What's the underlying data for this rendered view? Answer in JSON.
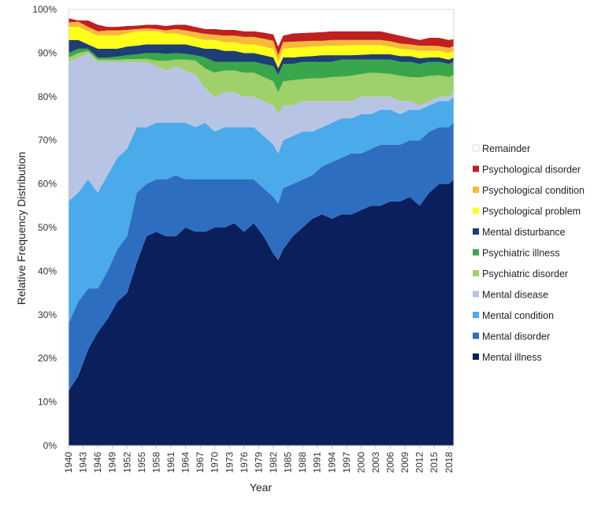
{
  "chart_data": {
    "type": "area",
    "stacked": true,
    "xlabel": "Year",
    "ylabel": "Relative Frequency Distribution",
    "ylim": [
      0,
      100
    ],
    "y_ticks": [
      "0%",
      "10%",
      "20%",
      "30%",
      "40%",
      "50%",
      "60%",
      "70%",
      "80%",
      "90%",
      "100%"
    ],
    "x_tick_labels": [
      "1940",
      "1943",
      "1946",
      "1949",
      "1952",
      "1955",
      "1958",
      "1961",
      "1964",
      "1967",
      "1970",
      "1973",
      "1976",
      "1979",
      "1982",
      "1985",
      "1988",
      "1991",
      "1994",
      "1997",
      "2000",
      "2003",
      "2006",
      "2009",
      "2012",
      "2015",
      "2018"
    ],
    "grid": false,
    "legend_position": "right",
    "legend_order": [
      "Remainder",
      "Psychological disorder",
      "Psychological condition",
      "Psychological problem",
      "Mental disturbance",
      "Psychiatric illness",
      "Psychiatric disorder",
      "Mental disease",
      "Mental condition",
      "Mental disorder",
      "Mental illness"
    ],
    "series_colors": {
      "Mental illness": "#0b1f5c",
      "Mental disorder": "#2e6ec1",
      "Mental condition": "#4aaaea",
      "Mental disease": "#b8c4e3",
      "Psychiatric disorder": "#9fd06a",
      "Psychiatric illness": "#3aa64c",
      "Mental disturbance": "#1d3f73",
      "Psychological problem": "#ffff1a",
      "Psychological condition": "#f6b93a",
      "Psychological disorder": "#c0201f",
      "Remainder": "#ffffff"
    },
    "x": [
      1940,
      1942,
      1944,
      1946,
      1948,
      1950,
      1952,
      1954,
      1956,
      1958,
      1960,
      1962,
      1964,
      1966,
      1968,
      1970,
      1972,
      1974,
      1976,
      1978,
      1980,
      1982,
      1983,
      1984,
      1986,
      1988,
      1990,
      1992,
      1994,
      1996,
      1998,
      2000,
      2002,
      2004,
      2006,
      2008,
      2010,
      2012,
      2014,
      2016,
      2018,
      2019
    ],
    "cumulative_tops": [
      {
        "name": "Mental illness",
        "values": [
          12.5,
          16,
          22,
          26,
          29,
          33,
          35,
          42,
          48,
          49,
          48,
          48,
          50,
          49,
          49,
          50,
          50,
          51,
          49,
          51,
          48,
          44,
          42.5,
          45,
          48,
          50,
          52,
          53,
          52,
          53,
          53,
          54,
          55,
          55,
          56,
          56,
          57,
          55,
          58,
          60,
          60,
          61
        ]
      },
      {
        "name": "Mental disorder",
        "values": [
          28,
          33,
          36,
          36,
          40,
          45,
          48,
          58,
          60,
          61,
          61,
          62,
          61,
          61,
          61,
          61,
          61,
          61,
          61,
          61,
          59,
          57,
          55.5,
          59,
          60,
          61,
          62,
          64,
          65,
          66,
          67,
          67,
          68,
          69,
          69,
          69,
          70,
          70,
          72,
          73,
          73,
          74
        ]
      },
      {
        "name": "Mental condition",
        "values": [
          56,
          58,
          61,
          58,
          62,
          66,
          68,
          73,
          73,
          74,
          74,
          74,
          74,
          73,
          74,
          72,
          73,
          73,
          73,
          73,
          71,
          69,
          67,
          70,
          71,
          72,
          72,
          73,
          74,
          75,
          75,
          76,
          76,
          77,
          77,
          76,
          77,
          77,
          78,
          79,
          79,
          80
        ]
      },
      {
        "name": "Mental disease",
        "values": [
          88,
          89,
          90,
          88,
          88,
          88,
          88,
          88,
          88,
          87,
          86,
          87,
          86,
          85,
          82,
          80,
          81,
          81,
          80,
          80,
          79,
          78,
          76,
          78,
          78,
          79,
          79,
          79,
          79,
          79,
          79,
          80,
          80,
          80,
          80,
          79,
          79,
          78,
          79,
          80,
          80,
          81
        ]
      },
      {
        "name": "Psychiatric disorder",
        "values": [
          89,
          90,
          90.5,
          88.5,
          88.5,
          88.5,
          88.6,
          88.6,
          88.7,
          88.3,
          88.2,
          88.5,
          88.5,
          88.3,
          86.5,
          85.5,
          86,
          86,
          85.5,
          85.5,
          84.5,
          83.5,
          81,
          83.5,
          83.8,
          84,
          84.2,
          84.2,
          84.5,
          84.6,
          84.8,
          85.2,
          85.5,
          85.4,
          85.2,
          84.8,
          84.5,
          84.4,
          84.8,
          84.9,
          84.5,
          85
        ]
      },
      {
        "name": "Psychiatric illness",
        "values": [
          90,
          91,
          91,
          89,
          89,
          89.2,
          89.5,
          89.7,
          90,
          90,
          89.8,
          90,
          89.8,
          89.5,
          89,
          88,
          88,
          88,
          88,
          88,
          87.5,
          87,
          85,
          87.5,
          87.5,
          88,
          88,
          88,
          88,
          88.5,
          88.5,
          88.5,
          88.5,
          88.5,
          88.5,
          88,
          88,
          87.5,
          88,
          88,
          87.5,
          88
        ]
      },
      {
        "name": "Mental disturbance",
        "values": [
          93,
          93,
          92,
          91,
          91,
          91,
          91.5,
          91.7,
          92,
          92,
          92,
          92,
          92,
          91.5,
          91,
          91,
          90.5,
          90.5,
          90,
          90,
          89.5,
          89,
          86.5,
          89,
          89,
          89.2,
          89.3,
          89.5,
          89.5,
          89.5,
          89.5,
          89.6,
          89.7,
          89.7,
          89.7,
          89.3,
          89.3,
          88.8,
          89,
          89,
          88.5,
          89
        ]
      },
      {
        "name": "Psychological problem",
        "values": [
          96,
          96,
          95,
          94,
          94,
          94,
          94.5,
          95,
          95,
          95,
          94.5,
          94.5,
          94,
          93.5,
          93,
          93,
          92.5,
          92.5,
          92,
          92,
          91.5,
          91,
          88,
          91,
          91.2,
          91.3,
          91.5,
          91.6,
          91.7,
          91.7,
          91.8,
          91.8,
          91.8,
          91.8,
          91.5,
          91,
          90.8,
          90.5,
          90.5,
          90.5,
          90,
          90.5
        ]
      },
      {
        "name": "Psychological condition",
        "values": [
          97,
          97.2,
          96,
          95,
          95.2,
          95.2,
          95.3,
          95.5,
          95.7,
          95.5,
          95.2,
          95.5,
          95.2,
          94.8,
          94.4,
          94.2,
          94,
          94,
          93.7,
          93.7,
          93.3,
          92.8,
          89.5,
          92.5,
          92.6,
          92.7,
          92.8,
          92.8,
          93,
          93,
          93,
          93,
          93,
          93,
          92.7,
          92.2,
          92,
          91.7,
          91.7,
          91.6,
          91.2,
          91.6
        ]
      },
      {
        "name": "Psychological disorder",
        "values": [
          98,
          97.5,
          97.5,
          96.5,
          96,
          96,
          96.2,
          96.3,
          96.5,
          96.5,
          96.2,
          96.5,
          96.5,
          96,
          95.5,
          95.5,
          95.3,
          95.3,
          95,
          95,
          94.7,
          94.3,
          91.5,
          94,
          94.5,
          94.6,
          94.7,
          94.8,
          95,
          95,
          95,
          95,
          95,
          95,
          94.5,
          94,
          93.5,
          93,
          93.5,
          93.5,
          93,
          93.2
        ]
      },
      {
        "name": "Remainder",
        "values": [
          100,
          100,
          100,
          100,
          100,
          100,
          100,
          100,
          100,
          100,
          100,
          100,
          100,
          100,
          100,
          100,
          100,
          100,
          100,
          100,
          100,
          100,
          100,
          100,
          100,
          100,
          100,
          100,
          100,
          100,
          100,
          100,
          100,
          100,
          100,
          100,
          100,
          100,
          100,
          100,
          100,
          100
        ]
      }
    ]
  }
}
